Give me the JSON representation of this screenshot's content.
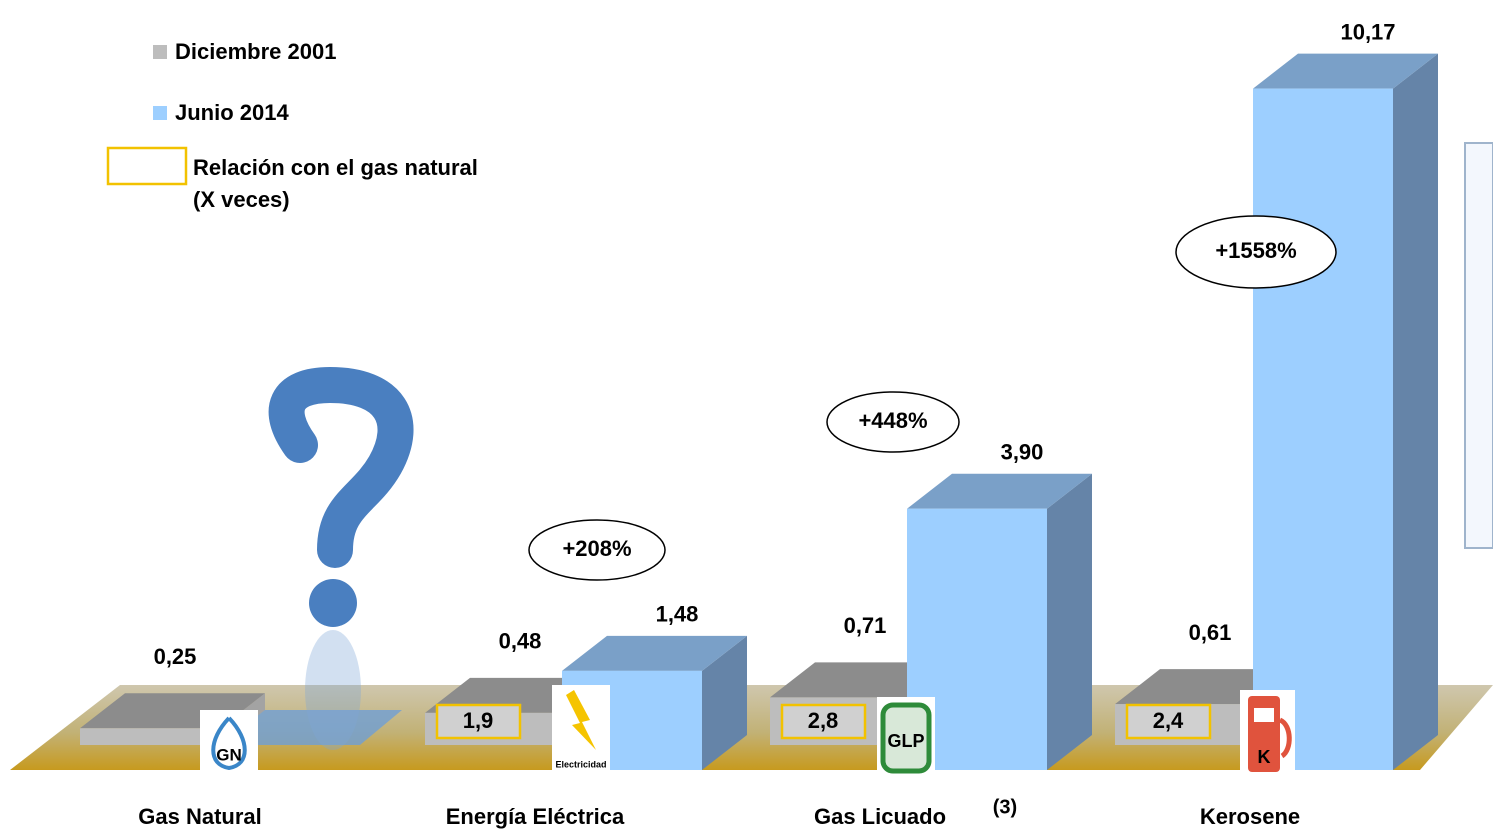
{
  "chart_data": {
    "type": "bar",
    "categories": [
      "Gas Natural",
      "Energía Eléctrica",
      "Gas Licuado",
      "Kerosene"
    ],
    "category_note": "(3)",
    "series": [
      {
        "name": "Diciembre 2001",
        "color": "#bdbdbd",
        "values": [
          0.25,
          0.48,
          0.71,
          0.61
        ],
        "value_labels": [
          "0,25",
          "0,48",
          "0,71",
          "0,61"
        ]
      },
      {
        "name": "Junio 2014",
        "color": "#9dcfff",
        "values": [
          null,
          1.48,
          3.9,
          10.17
        ],
        "value_labels": [
          null,
          "1,48",
          "3,90",
          "10,17"
        ]
      }
    ],
    "ratio_legend": [
      "Relación con el gas natural",
      "(X veces)"
    ],
    "ratios": [
      null,
      {
        "value": 1.9,
        "label": "1,9"
      },
      {
        "value": 2.8,
        "label": "2,8"
      },
      {
        "value": 2.4,
        "label": "2,4"
      }
    ],
    "changes": [
      null,
      {
        "value": 208,
        "label": "+208%"
      },
      {
        "value": 448,
        "label": "+448%"
      },
      {
        "value": 1558,
        "label": "+1558%"
      }
    ],
    "icons": [
      "GN",
      "Electricidad",
      "GLP",
      "K"
    ]
  }
}
